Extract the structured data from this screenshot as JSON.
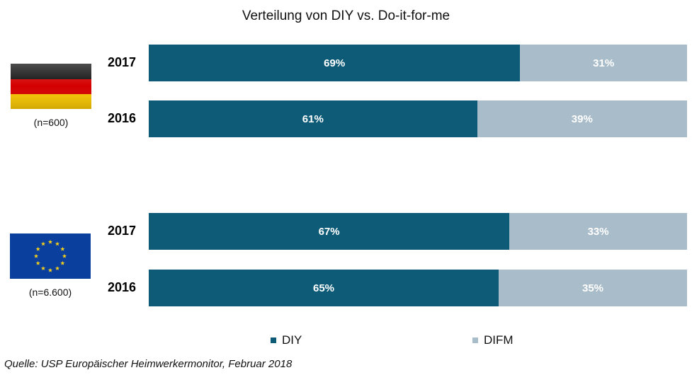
{
  "title": "Verteilung  von DIY vs. Do-it-for-me",
  "colors": {
    "DIY": "#0e5b77",
    "DIFM": "#a9bcc9"
  },
  "groups": [
    {
      "flag": "germany-flag",
      "n_label": "(n=600)"
    },
    {
      "flag": "eu-flag",
      "n_label": "(n=6.600)"
    }
  ],
  "legend": [
    {
      "label": "DIY",
      "series": "DIY"
    },
    {
      "label": "DIFM",
      "series": "DIFM"
    }
  ],
  "source": "Quelle: USP Europäischer Heimwerkermonitor,  Februar 2018",
  "chart_data": {
    "type": "bar",
    "orientation": "horizontal",
    "stacked": true,
    "categories": [
      "2017",
      "2016",
      "2017",
      "2016"
    ],
    "series": [
      {
        "name": "DIY",
        "values": [
          69,
          61,
          67,
          65
        ],
        "labels": [
          "69%",
          "61%",
          "67%",
          "65%"
        ]
      },
      {
        "name": "DIFM",
        "values": [
          31,
          39,
          33,
          35
        ],
        "labels": [
          "31%",
          "39%",
          "33%",
          "35%"
        ]
      }
    ],
    "xlim": [
      0,
      100
    ],
    "legend": "bottom",
    "grid": false
  }
}
